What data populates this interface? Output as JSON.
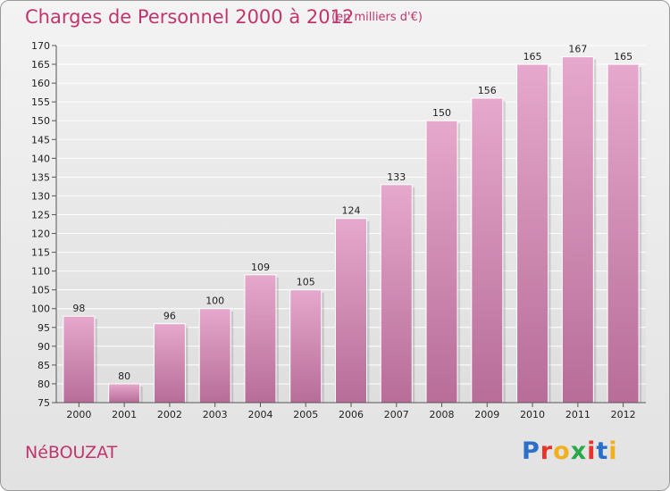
{
  "header": {
    "title": "Charges de Personnel 2000 à 2012",
    "subtitle": "(en milliers d'€)"
  },
  "footer": {
    "town": "NéBOUZAT",
    "logo_text": "Proxiti",
    "logo_letter_colors": [
      "#2a6fc9",
      "#e8332a",
      "#f2b01e",
      "#2aa84a",
      "#e8332a",
      "#2a6fc9",
      "#f2b01e"
    ]
  },
  "colors": {
    "bar_light": "#e6a8cc",
    "bar_dark": "#b76d98",
    "title": "#c0356e"
  },
  "chart_data": {
    "type": "bar",
    "title": "Charges de Personnel 2000 à 2012",
    "subtitle": "(en milliers d'€)",
    "categories": [
      "2000",
      "2001",
      "2002",
      "2003",
      "2004",
      "2005",
      "2006",
      "2007",
      "2008",
      "2009",
      "2010",
      "2011",
      "2012"
    ],
    "values": [
      98,
      80,
      96,
      100,
      109,
      105,
      124,
      133,
      150,
      156,
      165,
      167,
      165
    ],
    "ylim": [
      75,
      170
    ],
    "yticks": [
      75,
      80,
      85,
      90,
      95,
      100,
      105,
      110,
      115,
      120,
      125,
      130,
      135,
      140,
      145,
      150,
      155,
      160,
      165,
      170
    ],
    "grid": true,
    "data_labels": true
  }
}
